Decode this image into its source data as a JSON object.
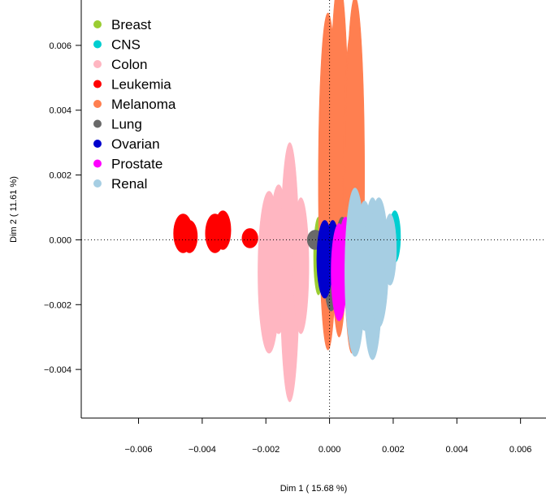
{
  "chart_data": {
    "type": "scatter",
    "xlabel": "Dim 1 ( 15.68 %)",
    "ylabel": "Dim 2 ( 11.61 %)",
    "xlim": [
      -0.0078,
      0.0068
    ],
    "ylim": [
      -0.0055,
      0.0074
    ],
    "x_ticks": [
      -0.006,
      -0.004,
      -0.002,
      0.0,
      0.002,
      0.004,
      0.006
    ],
    "y_ticks": [
      -0.004,
      -0.002,
      0.0,
      0.002,
      0.004,
      0.006
    ],
    "x_tick_labels": [
      "−0.006",
      "−0.004",
      "−0.002",
      "0.000",
      "0.002",
      "0.004",
      "0.006"
    ],
    "y_tick_labels": [
      "−0.004",
      "−0.002",
      "0.000",
      "0.002",
      "0.004",
      "0.006"
    ],
    "reference_lines": {
      "x": 0,
      "y": 0,
      "style": "dotted"
    },
    "legend_position": "top-left",
    "series": [
      {
        "name": "Breast",
        "color": "#9ACD32",
        "ellipses": [
          {
            "cx": -0.00035,
            "cy": -0.0005,
            "rx": 0.00015,
            "ry": 0.0012
          },
          {
            "cx": 0.0004,
            "cy": -0.0004,
            "rx": 0.00012,
            "ry": 0.0011
          },
          {
            "cx": 0.00085,
            "cy": -0.0005,
            "rx": 0.00013,
            "ry": 0.0013
          }
        ]
      },
      {
        "name": "CNS",
        "color": "#00CED1",
        "ellipses": [
          {
            "cx": 0.00205,
            "cy": 0.0001,
            "rx": 0.00018,
            "ry": 0.0008
          },
          {
            "cx": 0.0019,
            "cy": -0.0001,
            "rx": 0.00015,
            "ry": 0.0009
          }
        ]
      },
      {
        "name": "Colon",
        "color": "#FFB6C1",
        "ellipses": [
          {
            "cx": -0.0019,
            "cy": -0.001,
            "rx": 0.00035,
            "ry": 0.0025
          },
          {
            "cx": -0.0016,
            "cy": -0.0006,
            "rx": 0.0003,
            "ry": 0.0023
          },
          {
            "cx": -0.00125,
            "cy": -0.001,
            "rx": 0.0003,
            "ry": 0.004
          },
          {
            "cx": -0.0009,
            "cy": -0.0008,
            "rx": 0.00025,
            "ry": 0.0021
          }
        ]
      },
      {
        "name": "Leukemia",
        "color": "#FF0000",
        "ellipses": [
          {
            "cx": -0.0046,
            "cy": 0.0002,
            "rx": 0.0003,
            "ry": 0.0006
          },
          {
            "cx": -0.0044,
            "cy": 0.0001,
            "rx": 0.00025,
            "ry": 0.0005
          },
          {
            "cx": -0.0036,
            "cy": 0.0002,
            "rx": 0.0003,
            "ry": 0.0006
          },
          {
            "cx": -0.00335,
            "cy": 0.0003,
            "rx": 0.00025,
            "ry": 0.0006
          },
          {
            "cx": -0.0025,
            "cy": 5e-05,
            "rx": 0.00025,
            "ry": 0.0003
          }
        ]
      },
      {
        "name": "Melanoma",
        "color": "#FF7F50",
        "ellipses": [
          {
            "cx": -5e-05,
            "cy": 0.0018,
            "rx": 0.0003,
            "ry": 0.0052
          },
          {
            "cx": 0.0003,
            "cy": 0.0025,
            "rx": 0.0003,
            "ry": 0.0055
          },
          {
            "cx": 0.0007,
            "cy": 0.0015,
            "rx": 0.00028,
            "ry": 0.005
          },
          {
            "cx": 0.0008,
            "cy": 0.002,
            "rx": 0.0003,
            "ry": 0.0055
          }
        ]
      },
      {
        "name": "Lung",
        "color": "#696969",
        "ellipses": [
          {
            "cx": -0.00045,
            "cy": 0.0,
            "rx": 0.00025,
            "ry": 0.0003
          },
          {
            "cx": 5e-05,
            "cy": -0.0011,
            "rx": 0.00022,
            "ry": 0.0011
          },
          {
            "cx": 0.0004,
            "cy": -0.0002,
            "rx": 0.0002,
            "ry": 0.0009
          }
        ]
      },
      {
        "name": "Ovarian",
        "color": "#0000CD",
        "ellipses": [
          {
            "cx": -0.00015,
            "cy": -0.0006,
            "rx": 0.00025,
            "ry": 0.0012
          },
          {
            "cx": 0.0001,
            "cy": -0.0004,
            "rx": 0.0002,
            "ry": 0.001
          },
          {
            "cx": 0.00075,
            "cy": -0.0001,
            "rx": 0.0002,
            "ry": 0.0014
          }
        ]
      },
      {
        "name": "Prostate",
        "color": "#FF00FF",
        "ellipses": [
          {
            "cx": 0.0003,
            "cy": -0.001,
            "rx": 0.00025,
            "ry": 0.0015
          },
          {
            "cx": 0.0005,
            "cy": -0.0006,
            "rx": 0.00022,
            "ry": 0.0013
          }
        ]
      },
      {
        "name": "Renal",
        "color": "#A6CEE3",
        "ellipses": [
          {
            "cx": 0.0008,
            "cy": -0.001,
            "rx": 0.00032,
            "ry": 0.0026
          },
          {
            "cx": 0.0011,
            "cy": -0.0008,
            "rx": 0.00028,
            "ry": 0.002
          },
          {
            "cx": 0.00135,
            "cy": -0.0012,
            "rx": 0.0003,
            "ry": 0.0025
          },
          {
            "cx": 0.00155,
            "cy": -0.0007,
            "rx": 0.0003,
            "ry": 0.002
          },
          {
            "cx": 0.0019,
            "cy": -0.0003,
            "rx": 0.0002,
            "ry": 0.0011
          }
        ]
      }
    ]
  }
}
